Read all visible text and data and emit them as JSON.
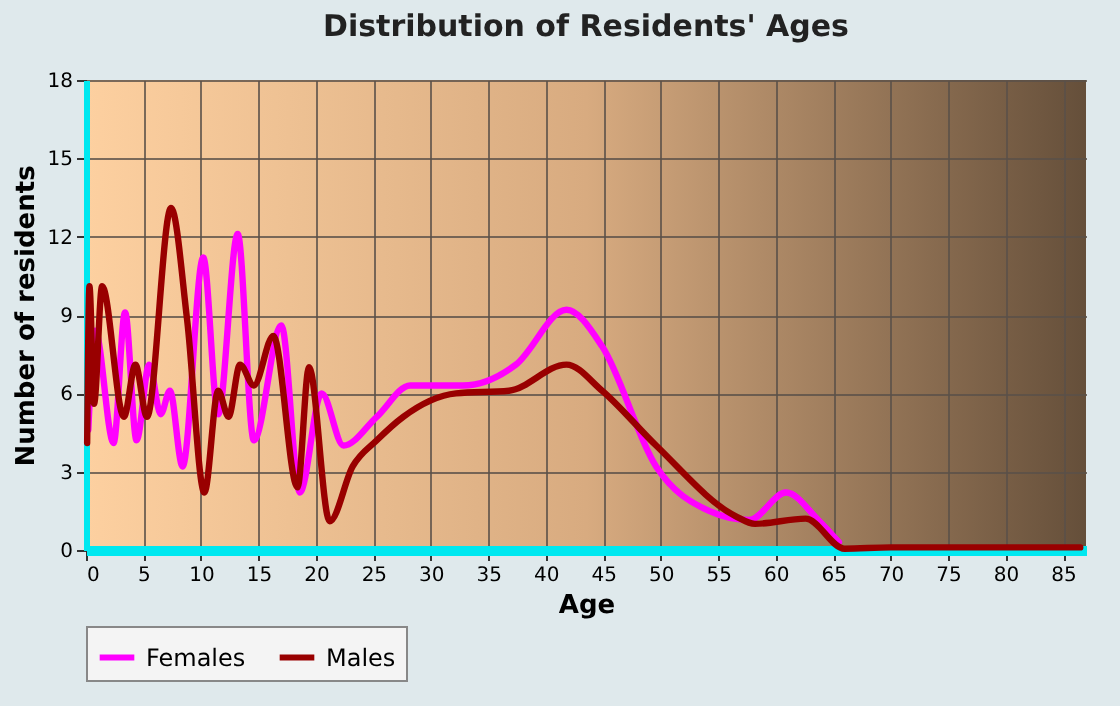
{
  "chart_data": {
    "type": "line",
    "title": "Distribution of Residents' Ages",
    "xlabel": "Age",
    "ylabel": "Number of residents",
    "xlim": [
      0,
      87
    ],
    "xticks": [
      0,
      5,
      10,
      15,
      20,
      25,
      30,
      35,
      40,
      45,
      50,
      55,
      60,
      65,
      70,
      75,
      80,
      85
    ],
    "ylim": [
      0,
      18
    ],
    "yticks": [
      0,
      3,
      6,
      9,
      12,
      15,
      18
    ],
    "grid": true,
    "legend": "bottom",
    "line_style": "solid",
    "marker": "none",
    "series": [
      {
        "name": "Females",
        "color": "#ff00ff",
        "x": [
          0.2,
          0.8,
          2.4,
          3.4,
          4.4,
          5.5,
          6.5,
          7.3,
          8.4,
          10.2,
          11.5,
          13.2,
          14.6,
          17.0,
          18.6,
          20.5,
          22.4,
          25.3,
          28.2,
          32.8,
          37.4,
          41.8,
          44.9,
          49.6,
          54.2,
          57.7,
          60.9,
          63.7,
          65.5
        ],
        "values": [
          4.6,
          8.4,
          4.1,
          9.1,
          4.2,
          7.1,
          5.2,
          6.1,
          3.2,
          11.2,
          5.2,
          12.1,
          4.2,
          8.6,
          2.2,
          6.0,
          4.0,
          5.1,
          6.3,
          6.3,
          7.1,
          9.2,
          7.8,
          3.2,
          1.5,
          1.15,
          2.2,
          1.15,
          0.3
        ]
      },
      {
        "name": "Males",
        "color": "#990000",
        "x": [
          0.1,
          0.3,
          0.7,
          1.4,
          3.3,
          4.3,
          5.3,
          7.4,
          8.8,
          10.3,
          11.5,
          12.4,
          13.4,
          14.6,
          16.3,
          18.4,
          19.4,
          21.2,
          23.2,
          25.3,
          27.6,
          32.2,
          36.8,
          41.8,
          44.9,
          49.6,
          56.5,
          58.2,
          62.6,
          66.0,
          70.0,
          86.5
        ],
        "values": [
          4.1,
          10.1,
          5.6,
          10.1,
          5.1,
          7.1,
          5.1,
          13.1,
          8.8,
          2.2,
          6.1,
          5.1,
          7.1,
          6.3,
          8.2,
          2.4,
          7.0,
          1.1,
          3.2,
          4.2,
          5.1,
          6.0,
          6.1,
          7.1,
          6.1,
          4.0,
          1.3,
          1.0,
          1.2,
          0.05,
          0.1,
          0.1
        ]
      }
    ]
  }
}
